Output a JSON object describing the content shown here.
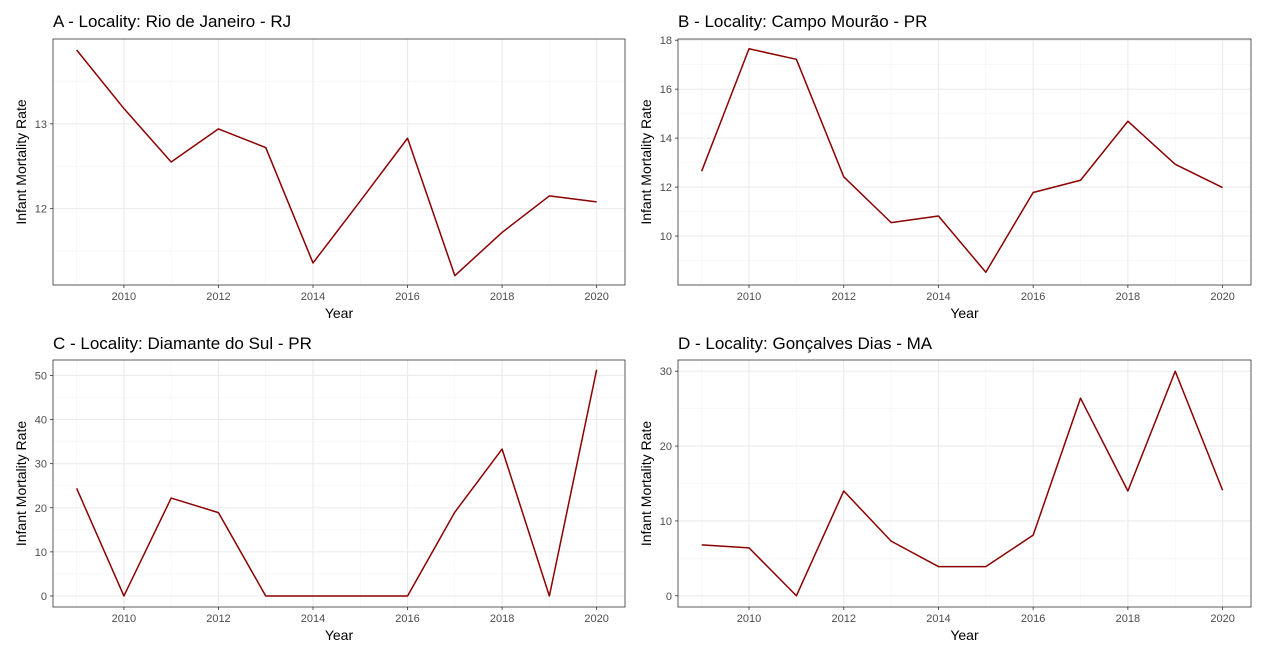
{
  "chart_data": [
    {
      "id": "A",
      "type": "line",
      "title": "A - Locality:  Rio de Janeiro - RJ",
      "xlabel": "Year",
      "ylabel": "Infant Mortality Rate",
      "xlim": [
        2008.5,
        2020.6
      ],
      "ylim": [
        11.1,
        14.0
      ],
      "xticks": [
        2010,
        2012,
        2014,
        2016,
        2018,
        2020
      ],
      "yticks": [
        12,
        13
      ],
      "x": [
        2009,
        2010,
        2011,
        2012,
        2013,
        2014,
        2015,
        2016,
        2017,
        2018,
        2019,
        2020
      ],
      "series": [
        {
          "name": "Infant Mortality Rate",
          "color": "#8b0000",
          "values": [
            13.87,
            13.18,
            12.55,
            12.94,
            12.72,
            11.36,
            12.09,
            12.83,
            11.21,
            11.72,
            12.15,
            12.08
          ]
        }
      ]
    },
    {
      "id": "B",
      "type": "line",
      "title": "B - Locality:  Campo Mourão - PR",
      "xlabel": "Year",
      "ylabel": "Infant Mortality Rate",
      "xlim": [
        2008.5,
        2020.6
      ],
      "ylim": [
        8.0,
        18.05
      ],
      "xticks": [
        2010,
        2012,
        2014,
        2016,
        2018,
        2020
      ],
      "yticks": [
        10,
        12,
        14,
        16,
        18
      ],
      "x": [
        2009,
        2010,
        2011,
        2012,
        2013,
        2014,
        2015,
        2016,
        2017,
        2018,
        2019,
        2020
      ],
      "series": [
        {
          "name": "Infant Mortality Rate",
          "color": "#8b0000",
          "values": [
            12.65,
            17.65,
            17.22,
            12.42,
            10.55,
            10.82,
            8.52,
            11.78,
            12.28,
            14.69,
            12.93,
            11.98
          ]
        }
      ]
    },
    {
      "id": "C",
      "type": "line",
      "title": "C - Locality:  Diamante do Sul - PR",
      "xlabel": "Year",
      "ylabel": "Infant Mortality Rate",
      "xlim": [
        2008.5,
        2020.6
      ],
      "ylim": [
        -2.5,
        53.5
      ],
      "xticks": [
        2010,
        2012,
        2014,
        2016,
        2018,
        2020
      ],
      "yticks": [
        0,
        10,
        20,
        30,
        40,
        50
      ],
      "x": [
        2009,
        2010,
        2011,
        2012,
        2013,
        2014,
        2015,
        2016,
        2017,
        2018,
        2019,
        2020
      ],
      "series": [
        {
          "name": "Infant Mortality Rate",
          "color": "#8b0000",
          "values": [
            24.4,
            0,
            22.2,
            18.9,
            0,
            0,
            0,
            0,
            19.0,
            33.3,
            0,
            51.3
          ]
        }
      ]
    },
    {
      "id": "D",
      "type": "line",
      "title": "D - Locality:  Gonçalves Dias - MA",
      "xlabel": "Year",
      "ylabel": "Infant Mortality Rate",
      "xlim": [
        2008.5,
        2020.6
      ],
      "ylim": [
        -1.5,
        31.5
      ],
      "xticks": [
        2010,
        2012,
        2014,
        2016,
        2018,
        2020
      ],
      "yticks": [
        0,
        10,
        20,
        30
      ],
      "x": [
        2009,
        2010,
        2011,
        2012,
        2013,
        2014,
        2015,
        2016,
        2017,
        2018,
        2019,
        2020
      ],
      "series": [
        {
          "name": "Infant Mortality Rate",
          "color": "#8b0000",
          "values": [
            6.8,
            6.4,
            0,
            14.0,
            7.3,
            3.9,
            3.9,
            8.1,
            26.4,
            14.0,
            30.0,
            14.1
          ]
        }
      ]
    }
  ]
}
